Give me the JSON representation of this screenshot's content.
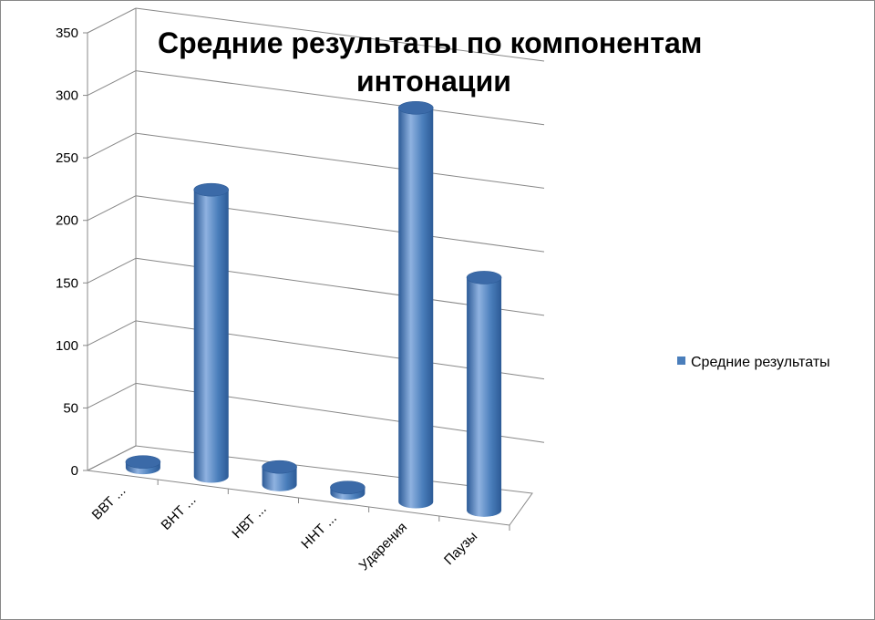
{
  "chart_data": {
    "type": "bar",
    "style": "3d-cylinder",
    "title_lines": [
      "Средние результаты по компонентам",
      "интонации"
    ],
    "categories": [
      "ВВТ ...",
      "ВНТ ...",
      "НВТ ...",
      "ННТ ...",
      "Ударения",
      "Паузы"
    ],
    "series": [
      {
        "name": "Средние результаты",
        "values": [
          5,
          240,
          15,
          5,
          330,
          195
        ]
      }
    ],
    "ylim": [
      0,
      350
    ],
    "yticks": [
      0,
      50,
      100,
      150,
      200,
      250,
      300,
      350
    ],
    "grid": true,
    "legend_position": "right",
    "colors": {
      "bar_main": "#4a7ebb",
      "bar_dark": "#2c5a96",
      "bar_light": "#8fb2e0",
      "bar_top": "#3b6aa8",
      "grid": "#888888"
    }
  }
}
